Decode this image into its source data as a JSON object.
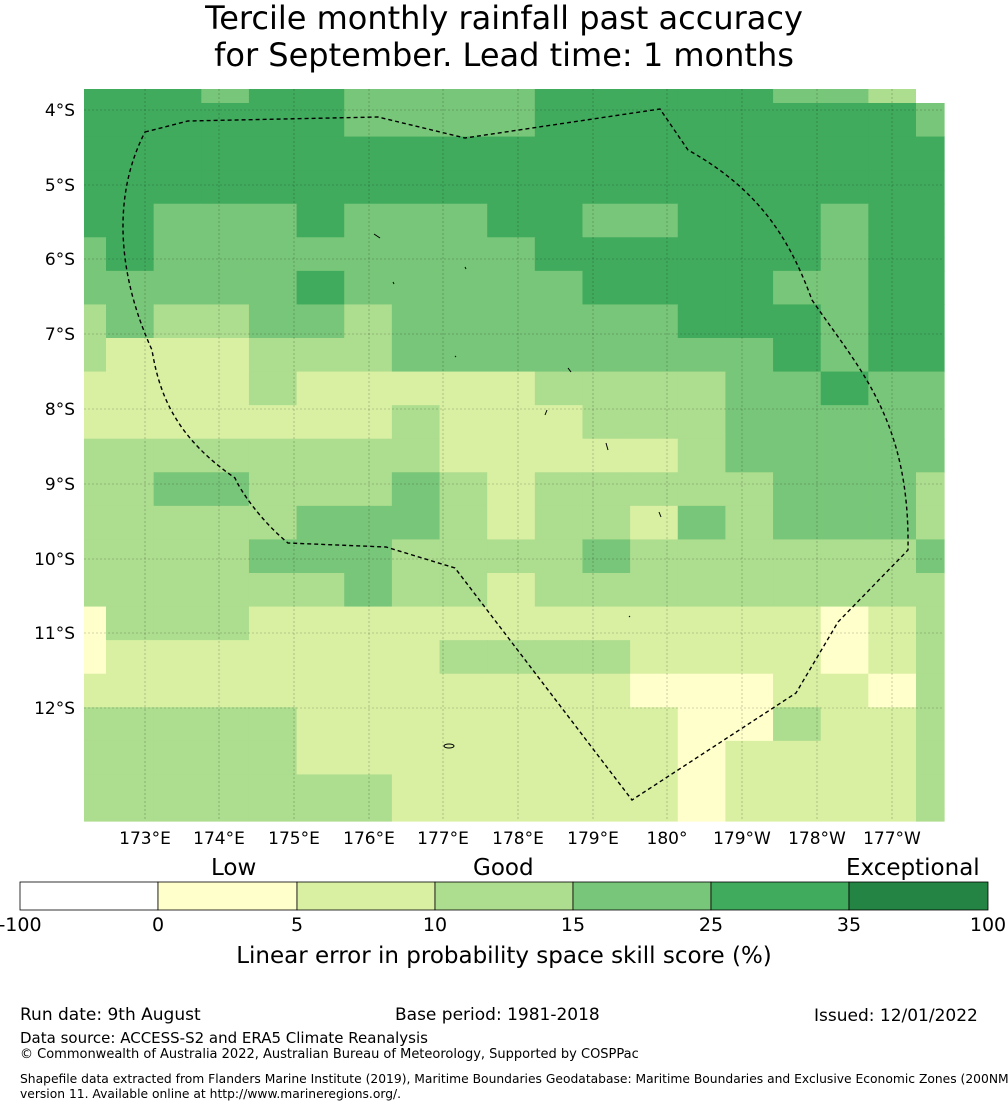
{
  "title": {
    "line1": "Tercile monthly rainfall past accuracy",
    "line2": "for September. Lead time: 1 months"
  },
  "map": {
    "lat_labels": [
      "4°S",
      "5°S",
      "6°S",
      "7°S",
      "8°S",
      "9°S",
      "10°S",
      "11°S",
      "12°S"
    ],
    "lon_labels": [
      "173°E",
      "174°E",
      "175°E",
      "176°E",
      "177°E",
      "178°E",
      "179°E",
      "180°",
      "179°W",
      "178°W",
      "177°W"
    ],
    "grid": [
      [
        5,
        5,
        5,
        4,
        5,
        5,
        4,
        4,
        4,
        4,
        5,
        5,
        5,
        5,
        5,
        4,
        4,
        3,
        0
      ],
      [
        5,
        5,
        5,
        5,
        5,
        5,
        4,
        4,
        4,
        4,
        5,
        5,
        5,
        5,
        5,
        5,
        5,
        5,
        4
      ],
      [
        5,
        5,
        5,
        5,
        5,
        5,
        5,
        5,
        5,
        5,
        5,
        5,
        5,
        5,
        5,
        5,
        5,
        5,
        5
      ],
      [
        5,
        5,
        5,
        5,
        5,
        5,
        5,
        5,
        5,
        5,
        5,
        5,
        5,
        5,
        5,
        5,
        5,
        5,
        5
      ],
      [
        5,
        5,
        4,
        4,
        4,
        5,
        4,
        4,
        4,
        5,
        5,
        4,
        4,
        5,
        5,
        5,
        4,
        5,
        5
      ],
      [
        4,
        5,
        4,
        4,
        4,
        4,
        4,
        4,
        4,
        4,
        5,
        5,
        5,
        5,
        5,
        5,
        4,
        5,
        5
      ],
      [
        4,
        4,
        4,
        4,
        4,
        5,
        4,
        4,
        4,
        4,
        4,
        5,
        5,
        5,
        5,
        4,
        4,
        5,
        5
      ],
      [
        3,
        4,
        3,
        3,
        4,
        4,
        3,
        4,
        4,
        4,
        4,
        4,
        4,
        5,
        5,
        5,
        4,
        5,
        5
      ],
      [
        3,
        2,
        2,
        2,
        3,
        3,
        3,
        4,
        4,
        4,
        4,
        4,
        4,
        4,
        4,
        5,
        4,
        5,
        5
      ],
      [
        2,
        2,
        2,
        2,
        3,
        2,
        2,
        2,
        2,
        2,
        3,
        3,
        3,
        3,
        4,
        4,
        5,
        4,
        4
      ],
      [
        2,
        2,
        2,
        2,
        2,
        2,
        2,
        3,
        2,
        2,
        2,
        3,
        3,
        3,
        4,
        4,
        4,
        4,
        4
      ],
      [
        3,
        3,
        3,
        3,
        3,
        3,
        3,
        3,
        2,
        2,
        2,
        2,
        2,
        3,
        4,
        4,
        4,
        4,
        4
      ],
      [
        3,
        3,
        4,
        4,
        3,
        3,
        3,
        4,
        3,
        2,
        3,
        3,
        3,
        3,
        3,
        4,
        4,
        4,
        3
      ],
      [
        3,
        3,
        3,
        3,
        3,
        4,
        4,
        4,
        3,
        2,
        3,
        3,
        2,
        4,
        3,
        4,
        4,
        4,
        3
      ],
      [
        3,
        3,
        3,
        3,
        4,
        4,
        4,
        3,
        3,
        3,
        3,
        4,
        3,
        3,
        3,
        3,
        3,
        3,
        4
      ],
      [
        3,
        3,
        3,
        3,
        3,
        3,
        4,
        3,
        3,
        2,
        3,
        3,
        3,
        3,
        3,
        3,
        3,
        3,
        3
      ],
      [
        1,
        3,
        3,
        3,
        2,
        2,
        2,
        2,
        2,
        2,
        2,
        2,
        2,
        2,
        2,
        2,
        1,
        2,
        3
      ],
      [
        1,
        2,
        2,
        2,
        2,
        2,
        2,
        2,
        3,
        3,
        3,
        3,
        2,
        2,
        2,
        2,
        1,
        2,
        3
      ],
      [
        2,
        2,
        2,
        2,
        2,
        2,
        2,
        2,
        2,
        2,
        2,
        2,
        1,
        1,
        1,
        2,
        2,
        1,
        3
      ],
      [
        3,
        3,
        3,
        3,
        3,
        2,
        2,
        2,
        2,
        2,
        2,
        2,
        2,
        1,
        1,
        3,
        2,
        2,
        3
      ],
      [
        3,
        3,
        3,
        3,
        3,
        2,
        2,
        2,
        2,
        2,
        2,
        2,
        2,
        1,
        2,
        2,
        2,
        2,
        3
      ],
      [
        3,
        3,
        3,
        3,
        3,
        3,
        3,
        2,
        2,
        2,
        2,
        2,
        2,
        1,
        2,
        2,
        2,
        2,
        3
      ],
      [
        3,
        3,
        3,
        3,
        3,
        3,
        3,
        2,
        2,
        2,
        2,
        2,
        2,
        1,
        2,
        2,
        2,
        2,
        3
      ]
    ]
  },
  "colorbar": {
    "words": [
      "Low",
      "Good",
      "Exceptional"
    ],
    "ticks": [
      "-100",
      "0",
      "5",
      "10",
      "15",
      "25",
      "35",
      "100"
    ],
    "colors": [
      "#ffffff",
      "#ffffcc",
      "#d9f0a3",
      "#addd8e",
      "#78c679",
      "#41ab5d",
      "#238443"
    ],
    "label": "Linear error in probability space skill score (%)"
  },
  "footer": {
    "run_date": "Run date: 9th August",
    "base_period": "Base period: 1981-2018",
    "issued": "Issued: 12/01/2022",
    "data_source": "Data source: ACCESS-S2 and ERA5 Climate Reanalysis",
    "copyright": "© Commonwealth of Australia 2022, Australian Bureau of Meteorology, Supported by COSPPac",
    "shapefile_line1": "Shapefile data extracted from Flanders Marine Institute (2019), Maritime Boundaries Geodatabase: Maritime Boundaries and Exclusive Economic Zones (200NM),",
    "shapefile_line2": "version 11. Available online at http://www.marineregions.org/."
  }
}
